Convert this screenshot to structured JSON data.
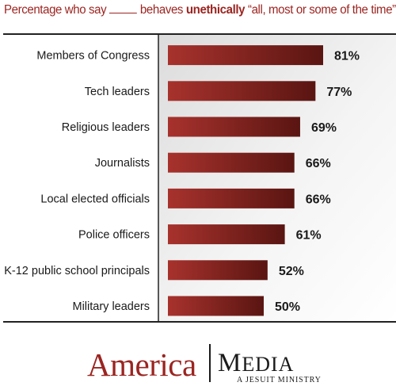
{
  "title": {
    "prefix": "Percentage who say",
    "middle": "behaves",
    "emphasis": "unethically",
    "suffix": "“all, most or some of the time”?"
  },
  "chart_data": {
    "type": "bar",
    "orientation": "horizontal",
    "categories": [
      "Members of Congress",
      "Tech leaders",
      "Religious leaders",
      "Journalists",
      "Local elected officials",
      "Police officers",
      "K-12 public school principals",
      "Military leaders"
    ],
    "values": [
      81,
      77,
      69,
      66,
      66,
      61,
      52,
      50
    ],
    "value_labels": [
      "81%",
      "77%",
      "69%",
      "66%",
      "66%",
      "61%",
      "52%",
      "50%"
    ],
    "xlim": [
      0,
      100
    ],
    "grid": false,
    "bar_color_start": "#a8322d",
    "bar_color_end": "#5a1512"
  },
  "logo": {
    "left": "America",
    "right_initial": "M",
    "right_rest": "EDIA",
    "tagline": "A JESUIT MINISTRY"
  },
  "colors": {
    "accent": "#9b2521",
    "text": "#1a1a1a",
    "rule": "#333333"
  }
}
